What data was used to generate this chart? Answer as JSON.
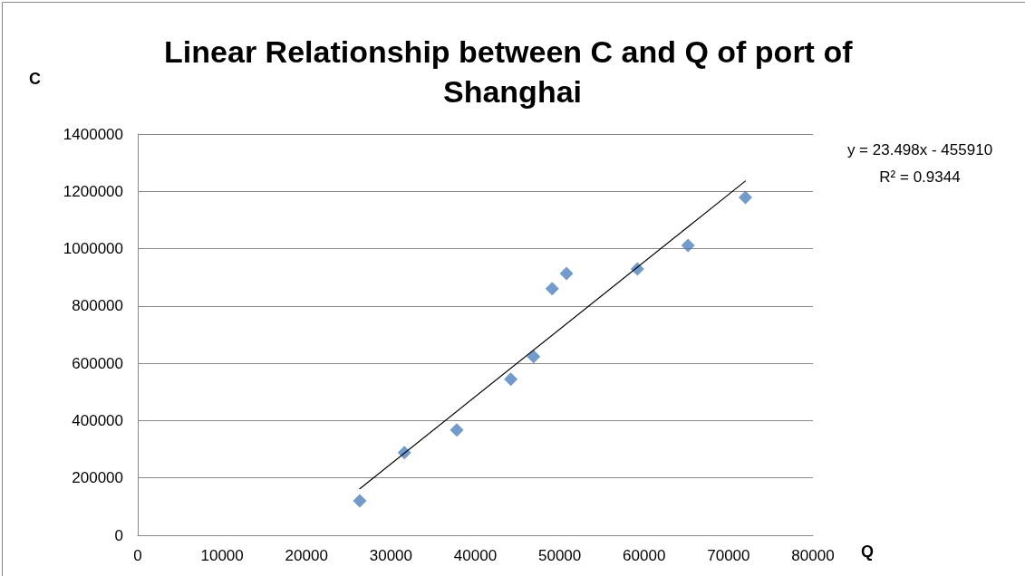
{
  "chart_data": {
    "type": "scatter",
    "title": "Linear Relationship between C and Q of port of Shanghai",
    "xlabel": "Q",
    "ylabel": "C",
    "annotations": [
      "y = 23.498x - 455910",
      "R² = 0.9344"
    ],
    "series": [
      {
        "color": "#4f81bd",
        "marker": "diamond",
        "x": [
          26300,
          31600,
          37800,
          44200,
          46900,
          49100,
          50800,
          59200,
          65200,
          72000
        ],
        "values": [
          120000,
          288000,
          367000,
          544000,
          623000,
          860000,
          913000,
          929000,
          1011000,
          1179000
        ]
      },
      {
        "type": "line",
        "color": "#000000",
        "marker": "none",
        "line_style": "solid",
        "x": [
          26300,
          72000
        ],
        "values": [
          162000,
          1236000
        ]
      }
    ],
    "xlim": [
      0,
      80000
    ],
    "xticks": [
      0,
      10000,
      20000,
      30000,
      40000,
      50000,
      60000,
      70000,
      80000
    ],
    "ylim": [
      0,
      1400000
    ],
    "yticks": [
      0,
      200000,
      400000,
      600000,
      800000,
      1000000,
      1200000,
      1400000
    ],
    "grid": "y"
  }
}
